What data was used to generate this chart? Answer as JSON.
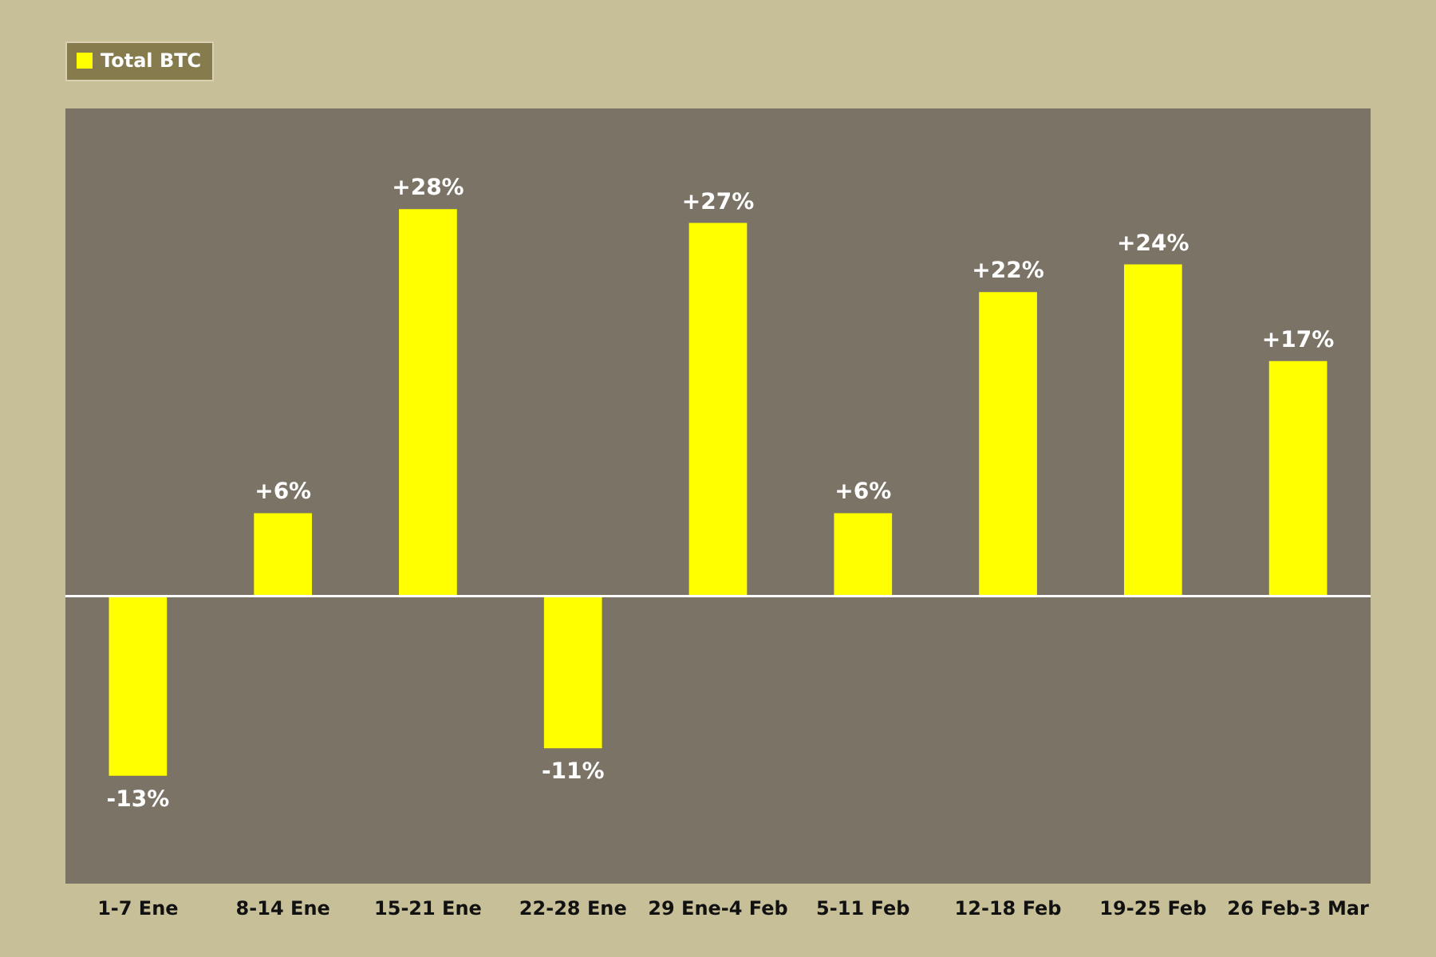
{
  "chart_data": {
    "type": "bar",
    "categories": [
      "1-7 Ene",
      "8-14 Ene",
      "15-21 Ene",
      "22-28 Ene",
      "29 Ene-4 Feb",
      "5-11 Feb",
      "12-18 Feb",
      "19-25 Feb",
      "26 Feb-3 Mar"
    ],
    "series": [
      {
        "name": "Total BTC",
        "color": "#ffff00",
        "values": [
          -13,
          6,
          28,
          -11,
          27,
          6,
          22,
          24,
          17
        ],
        "value_labels": [
          "-13%",
          "+6%",
          "+28%",
          "-11%",
          "+27%",
          "+6%",
          "+22%",
          "+24%",
          "+17%"
        ]
      }
    ],
    "legend": "top"
  }
}
